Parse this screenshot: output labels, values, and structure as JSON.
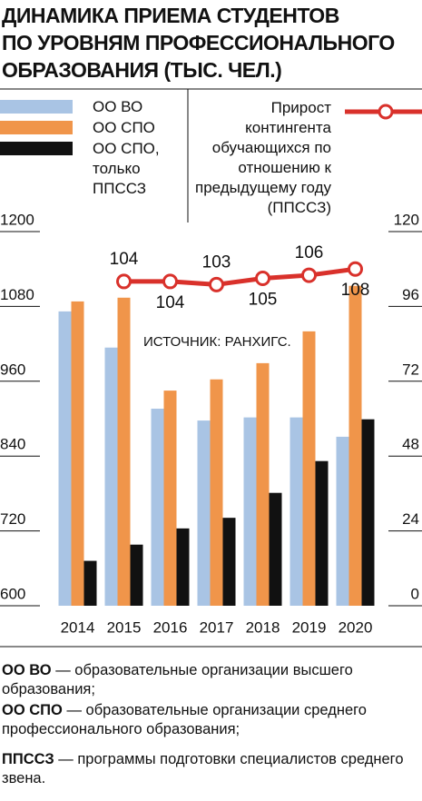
{
  "chart_data": {
    "type": "bar",
    "title_lines": [
      "ДИНАМИКА ПРИЕМА СТУДЕНТОВ",
      "ПО УРОВНЯМ ПРОФЕССИОНАЛЬНОГО",
      "ОБРАЗОВАНИЯ (ТЫС. ЧЕЛ.)"
    ],
    "categories": [
      "2014",
      "2015",
      "2016",
      "2017",
      "2018",
      "2019",
      "2020"
    ],
    "series": [
      {
        "name": "ОО ВО",
        "color": "#a9c4e4",
        "values": [
          1072,
          1014,
          916,
          897,
          902,
          902,
          871
        ]
      },
      {
        "name": "ОО СПО",
        "color": "#f0954a",
        "values": [
          1088,
          1094,
          945,
          963,
          989,
          1040,
          1113
        ]
      },
      {
        "name": "ОО СПО, только ППССЗ",
        "color": "#111111",
        "values": [
          672,
          698,
          724,
          741,
          781,
          832,
          899
        ]
      },
      {
        "name": "Прирост контингента обучающихся по отношению к предыдущему году (ППССЗ)",
        "color": "#d9312b",
        "type": "line",
        "axis": "y2",
        "values": [
          null,
          104,
          104,
          103,
          105,
          106,
          108
        ]
      }
    ],
    "ylim": [
      600,
      1200
    ],
    "yticks": [
      600,
      720,
      840,
      960,
      1080,
      1200
    ],
    "y2lim": [
      0,
      120
    ],
    "y2ticks": [
      0,
      24,
      48,
      72,
      96,
      120
    ],
    "annotation": "ИСТОЧНИК: РАНХИГС.",
    "notes": [
      {
        "term": "ОО ВО",
        "text": "— образовательные организации высшего образования;"
      },
      {
        "term": "ОО СПО",
        "text": "— образовательные организации среднего профессионального образования;"
      },
      {
        "term": "ППССЗ",
        "text": "— программы подготовки специалистов среднего звена."
      }
    ]
  }
}
